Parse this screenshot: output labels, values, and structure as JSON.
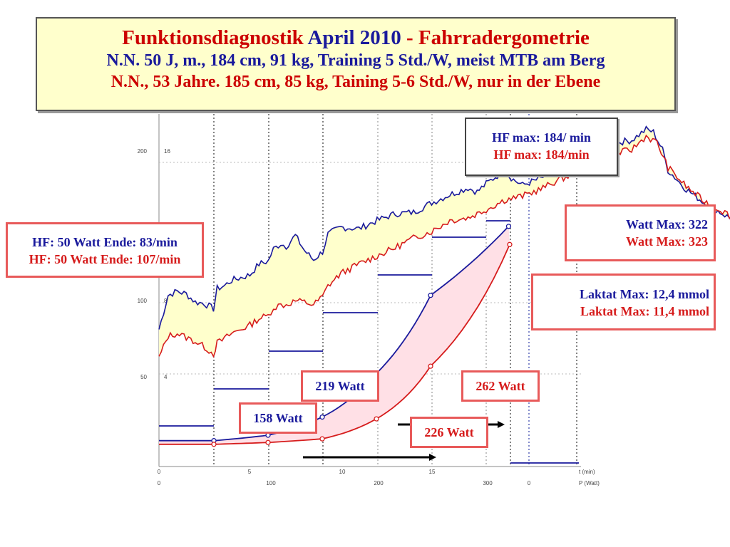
{
  "title": {
    "part1": "Funktionsdiagnostik ",
    "part2": "April 2010",
    "part3": " - Fahrradergometrie",
    "line2": "N.N. 50 J, m., 184 cm, 91 kg, Training 5 Std./W, meist MTB am Berg",
    "line3": "N.N., 53 Jahre. 185 cm, 85 kg, Taining 5-6 Std./W, nur in der Ebene"
  },
  "boxes": {
    "hfmax_blue": "HF max: 184/ min",
    "hfmax_red": "HF max: 184/min",
    "watt_blue": "Watt Max: 322",
    "watt_red": "Watt Max:  323",
    "hf50_blue": "HF: 50 Watt Ende: 83/min",
    "hf50_red": "HF: 50 Watt Ende: 107/min",
    "laktat_blue": "Laktat Max: 12,4 mmol",
    "laktat_red": "Laktat Max: 11,4 mmol",
    "w219": "219 Watt",
    "w262": "262 Watt",
    "w158": "158 Watt",
    "w226": "226 Watt"
  },
  "colors": {
    "blue": "#1a1a9c",
    "red": "#d61c1c",
    "fill": "#ffffcc",
    "pink": "#ffe0e6"
  },
  "chart_data": {
    "type": "line",
    "x_time": {
      "ticks": [
        "0",
        "5",
        "10",
        "15"
      ],
      "unit_label": "t (min)"
    },
    "x_power": {
      "ticks": [
        "0",
        "100",
        "200",
        "300",
        "0"
      ],
      "unit_label": "P (Watt)"
    },
    "y_hr": {
      "ticks": [
        "200",
        "100",
        "50"
      ]
    },
    "y_lactate": {
      "ticks": [
        "16",
        "8",
        "4"
      ]
    },
    "series": [
      {
        "name": "N.N. 50 J",
        "color": "#1a1a9c",
        "hr": [
          [
            0,
            93
          ],
          [
            0.5,
            118
          ],
          [
            1,
            121
          ],
          [
            1.5,
            119
          ],
          [
            2,
            113
          ],
          [
            2.5,
            112
          ],
          [
            3,
            108
          ],
          [
            3.2,
            123
          ],
          [
            3.6,
            125
          ],
          [
            4,
            129
          ],
          [
            4.5,
            131
          ],
          [
            5,
            133
          ],
          [
            5.5,
            141
          ],
          [
            6,
            143
          ],
          [
            6.3,
            152
          ],
          [
            6.7,
            156
          ],
          [
            7,
            154
          ],
          [
            7.5,
            162
          ],
          [
            8,
            151
          ],
          [
            8.5,
            144
          ],
          [
            9,
            150
          ],
          [
            9.3,
            163
          ],
          [
            10,
            168
          ],
          [
            11,
            167
          ],
          [
            12,
            173
          ],
          [
            13,
            178
          ],
          [
            14,
            179
          ],
          [
            15,
            186
          ],
          [
            16,
            192
          ],
          [
            17,
            197
          ],
          [
            17.5,
            194
          ],
          [
            18,
            200
          ],
          [
            18.5,
            205
          ],
          [
            19,
            209
          ],
          [
            19.5,
            203
          ],
          [
            20,
            199
          ],
          [
            21,
            204
          ],
          [
            22,
            211
          ],
          [
            23,
            218
          ],
          [
            24,
            223
          ],
          [
            25,
            230
          ],
          [
            26,
            232
          ],
          [
            26.8,
            240
          ],
          [
            27.2,
            238
          ],
          [
            27.7,
            225
          ],
          [
            28,
            210
          ],
          [
            29,
            196
          ],
          [
            30,
            186
          ],
          [
            31,
            178
          ],
          [
            32,
            170
          ],
          [
            33,
            162
          ],
          [
            34,
            152
          ],
          [
            35,
            147
          ]
        ],
        "lactate_mmol": [
          [
            50,
            0.6
          ],
          [
            100,
            0.9
          ],
          [
            150,
            1.9
          ],
          [
            200,
            4.3
          ],
          [
            250,
            8.6
          ],
          [
            322,
            12.4
          ]
        ],
        "power_steps_w": [
          [
            0,
            50
          ],
          [
            3,
            50
          ],
          [
            3,
            75
          ],
          [
            6,
            75
          ],
          [
            6,
            100
          ],
          [
            9,
            100
          ],
          [
            9,
            125
          ],
          [
            12,
            125
          ],
          [
            12,
            150
          ],
          [
            15,
            150
          ],
          [
            15,
            175
          ],
          [
            18,
            175
          ],
          [
            18,
            200
          ],
          [
            21,
            200
          ],
          [
            21,
            225
          ],
          [
            24,
            225
          ],
          [
            24,
            250
          ],
          [
            27,
            250
          ]
        ]
      },
      {
        "name": "N.N., 53 Jahre",
        "color": "#d61c1c",
        "hr": [
          [
            0,
            72
          ],
          [
            0.5,
            88
          ],
          [
            1,
            90
          ],
          [
            1.5,
            87
          ],
          [
            2,
            84
          ],
          [
            2.5,
            80
          ],
          [
            3,
            75
          ],
          [
            3.2,
            83
          ],
          [
            3.6,
            86
          ],
          [
            4,
            90
          ],
          [
            4.5,
            93
          ],
          [
            5,
            96
          ],
          [
            5.5,
            101
          ],
          [
            6,
            103
          ],
          [
            6.3,
            109
          ],
          [
            6.7,
            111
          ],
          [
            7,
            111
          ],
          [
            7.5,
            114
          ],
          [
            8,
            113
          ],
          [
            8.5,
            111
          ],
          [
            9,
            117
          ],
          [
            9.3,
            125
          ],
          [
            10,
            134
          ],
          [
            11,
            141
          ],
          [
            12,
            147
          ],
          [
            13,
            153
          ],
          [
            14,
            160
          ],
          [
            15,
            165
          ],
          [
            16,
            173
          ],
          [
            17,
            175
          ],
          [
            18,
            181
          ],
          [
            19,
            188
          ],
          [
            20,
            191
          ],
          [
            21,
            196
          ],
          [
            22,
            203
          ],
          [
            23,
            208
          ],
          [
            24,
            216
          ],
          [
            25,
            222
          ],
          [
            26,
            225
          ],
          [
            26.8,
            235
          ],
          [
            27.4,
            230
          ],
          [
            28,
            212
          ],
          [
            29,
            198
          ],
          [
            30,
            187
          ],
          [
            31,
            180
          ],
          [
            32,
            172
          ],
          [
            33,
            164
          ],
          [
            34,
            155
          ],
          [
            35,
            147
          ]
        ],
        "lactate_mmol": [
          [
            50,
            0.4
          ],
          [
            100,
            0.5
          ],
          [
            150,
            0.7
          ],
          [
            200,
            1.8
          ],
          [
            250,
            4.7
          ],
          [
            323,
            11.4
          ]
        ]
      }
    ]
  }
}
